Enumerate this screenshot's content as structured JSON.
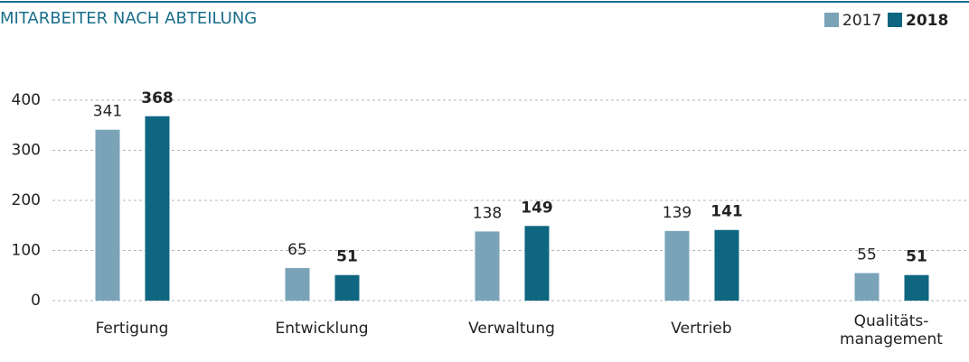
{
  "chart_data": {
    "type": "bar",
    "title": "MITARBEITER NACH ABTEILUNG",
    "categories": [
      "Fertigung",
      "Entwicklung",
      "Verwaltung",
      "Vertrieb",
      "Qualitäts-\nmanagement"
    ],
    "series": [
      {
        "name": "2017",
        "color": "#7aa3b8",
        "values": [
          341,
          65,
          138,
          139,
          55
        ]
      },
      {
        "name": "2018",
        "color": "#0e6680",
        "values": [
          368,
          51,
          149,
          141,
          51
        ]
      }
    ],
    "ylim": [
      0,
      400
    ],
    "yticks": [
      0,
      100,
      200,
      300,
      400
    ],
    "grid": true,
    "legend": "top-right"
  }
}
